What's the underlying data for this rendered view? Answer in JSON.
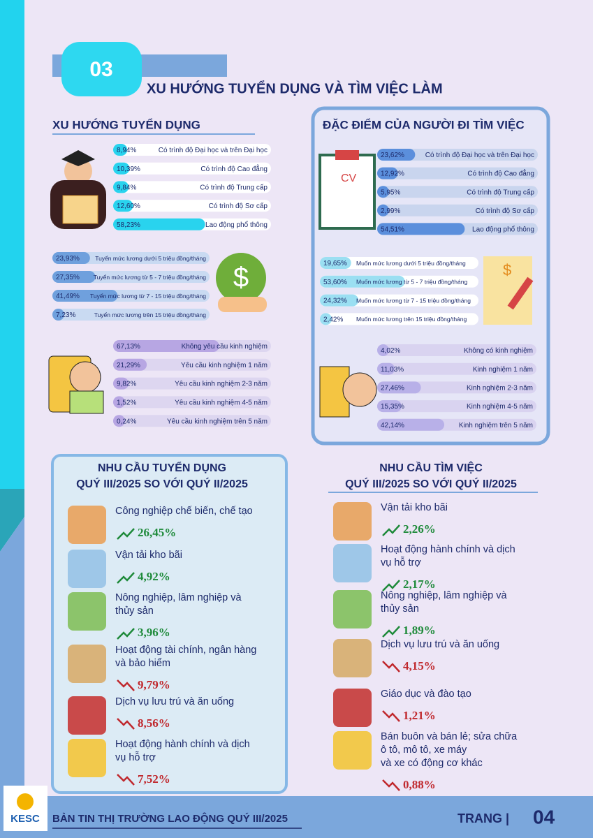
{
  "section": {
    "number": "03",
    "title": "XU HƯỚNG TUYỂN DỤNG VÀ TÌM VIỆC LÀM"
  },
  "recruit": {
    "title": "XU HƯỚNG TUYỂN DỤNG",
    "education": [
      {
        "label": "Có trình độ Đại học và trên Đại học",
        "value": 8.94,
        "value_label": "8,94%"
      },
      {
        "label": "Có trình độ Cao đẳng",
        "value": 10.39,
        "value_label": "10,39%"
      },
      {
        "label": "Có trình độ Trung cấp",
        "value": 9.84,
        "value_label": "9,84%"
      },
      {
        "label": "Có trình độ Sơ cấp",
        "value": 12.6,
        "value_label": "12,60%"
      },
      {
        "label": "Lao động phổ thông",
        "value": 58.23,
        "value_label": "58,23%"
      }
    ],
    "salary": [
      {
        "label": "Tuyển mức lương dưới 5 triệu đồng/tháng",
        "value": 23.93,
        "value_label": "23,93%"
      },
      {
        "label": "Tuyển mức lương từ 5 - 7 triệu đồng/tháng",
        "value": 27.35,
        "value_label": "27,35%"
      },
      {
        "label": "Tuyển mức lương từ 7 - 15 triệu đồng/tháng",
        "value": 41.49,
        "value_label": "41,49%"
      },
      {
        "label": "Tuyển mức lương trên 15 triệu đồng/tháng",
        "value": 7.23,
        "value_label": "7,23%"
      }
    ],
    "experience": [
      {
        "label": "Không yêu cầu kinh nghiệm",
        "value": 67.13,
        "value_label": "67,13%"
      },
      {
        "label": "Yêu cầu kinh nghiệm 1 năm",
        "value": 21.29,
        "value_label": "21,29%"
      },
      {
        "label": "Yêu cầu kinh nghiệm 2-3 năm",
        "value": 9.82,
        "value_label": "9,82%"
      },
      {
        "label": "Yêu cầu kinh nghiệm 4-5 năm",
        "value": 1.52,
        "value_label": "1,52%"
      },
      {
        "label": "Yêu cầu kinh nghiệm trên 5 năm",
        "value": 0.24,
        "value_label": "0,24%"
      }
    ]
  },
  "seekers": {
    "title": "ĐẶC ĐIỂM CỦA NGƯỜI ĐI TÌM VIỆC",
    "education": [
      {
        "label": "Có trình độ Đại học và trên Đại học",
        "value": 23.62,
        "value_label": "23,62%"
      },
      {
        "label": "Có trình độ Cao đẳng",
        "value": 12.92,
        "value_label": "12,92%"
      },
      {
        "label": "Có trình độ Trung cấp",
        "value": 5.95,
        "value_label": "5,95%"
      },
      {
        "label": "Có trình độ Sơ cấp",
        "value": 2.99,
        "value_label": "2,99%"
      },
      {
        "label": "Lao động phổ thông",
        "value": 54.51,
        "value_label": "54,51%"
      }
    ],
    "salary": [
      {
        "label": "Muốn mức lương dưới 5 triệu đồng/tháng",
        "value": 19.65,
        "value_label": "19,65%"
      },
      {
        "label": "Muốn mức lương từ 5 - 7 triệu đồng/tháng",
        "value": 53.6,
        "value_label": "53,60%"
      },
      {
        "label": "Muốn mức lương từ 7 - 15 triệu đồng/tháng",
        "value": 24.32,
        "value_label": "24,32%"
      },
      {
        "label": "Muốn mức lương trên 15 triệu đồng/tháng",
        "value": 2.42,
        "value_label": "2,42%"
      }
    ],
    "experience": [
      {
        "label": "Không có kinh nghiệm",
        "value": 4.02,
        "value_label": "4,02%"
      },
      {
        "label": "Kinh nghiệm 1 năm",
        "value": 11.03,
        "value_label": "11,03%"
      },
      {
        "label": "Kinh nghiệm 2-3 năm",
        "value": 27.46,
        "value_label": "27,46%"
      },
      {
        "label": "Kinh nghiệm 4-5 năm",
        "value": 15.35,
        "value_label": "15,35%"
      },
      {
        "label": "Kinh nghiệm trên 5 năm",
        "value": 42.14,
        "value_label": "42,14%"
      }
    ]
  },
  "demand_recruit": {
    "title_lines": [
      "NHU CẦU TUYỂN DỤNG",
      "QUÝ III/2025 SO VỚI QUÝ II/2025"
    ],
    "items": [
      {
        "lines": [
          "Công nghiệp chế biến, chế tạo"
        ],
        "trend": "up",
        "change": "26,45%"
      },
      {
        "lines": [
          "Vận tải kho bãi"
        ],
        "trend": "up",
        "change": "4,92%"
      },
      {
        "lines": [
          "Nông nghiệp, lâm nghiệp và",
          "thủy sản"
        ],
        "trend": "up",
        "change": "3,96%"
      },
      {
        "lines": [
          "Hoạt động tài chính, ngân hàng",
          "và bảo hiểm"
        ],
        "trend": "down",
        "change": "9,79%"
      },
      {
        "lines": [
          "Dịch vụ lưu trú và ăn uống"
        ],
        "trend": "down",
        "change": "8,56%"
      },
      {
        "lines": [
          "Hoạt động hành chính và dịch",
          "vụ hỗ trợ"
        ],
        "trend": "down",
        "change": "7,52%"
      }
    ]
  },
  "demand_seek": {
    "title_lines": [
      "NHU CẦU TÌM VIỆC",
      "QUÝ III/2025 SO VỚI QUÝ II/2025"
    ],
    "items": [
      {
        "lines": [
          "Vận tải kho bãi"
        ],
        "trend": "up",
        "change": "2,26%"
      },
      {
        "lines": [
          "Hoạt động hành chính và dịch",
          "vụ hỗ trợ"
        ],
        "trend": "up",
        "change": "2,17%"
      },
      {
        "lines": [
          "Nông nghiệp, lâm nghiệp và",
          "thủy sản"
        ],
        "trend": "up",
        "change": "1,89%"
      },
      {
        "lines": [
          "Dịch vụ lưu trú và ăn uống"
        ],
        "trend": "down",
        "change": "4,15%"
      },
      {
        "lines": [
          "Giáo dục và đào tạo"
        ],
        "trend": "down",
        "change": "1,21%"
      },
      {
        "lines": [
          "Bán buôn và bán lẻ; sửa chữa",
          "ô tô, mô tô, xe máy",
          "và xe có động cơ khác"
        ],
        "trend": "down",
        "change": "0,88%"
      }
    ]
  },
  "footer": {
    "logo": "KESC",
    "title": "BẢN TIN THỊ TRƯỜNG LAO ĐỘNG QUÝ III/2025",
    "page_label": "TRANG |",
    "page_number": "04"
  }
}
